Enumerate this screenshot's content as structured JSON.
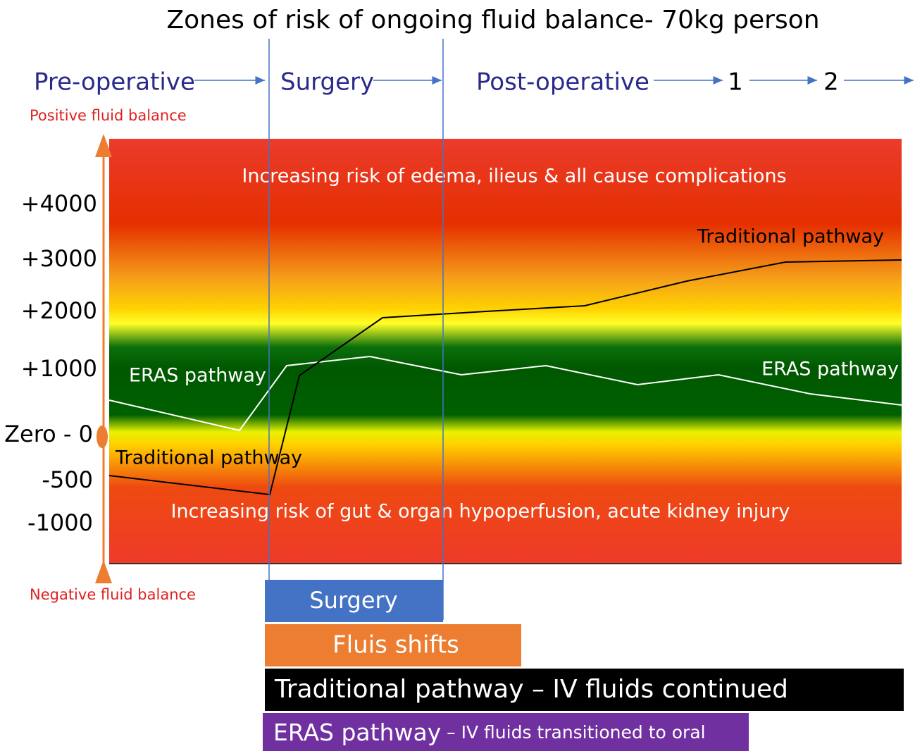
{
  "title": "Zones of risk of ongoing fluid balance- 70kg person",
  "phases": [
    "Pre-operative",
    "Surgery",
    "Post-operative",
    "1",
    "2"
  ],
  "y_axis": {
    "top_label": "Positive fluid balance",
    "bottom_label": "Negative fluid balance",
    "ticks": [
      "+4000",
      "+3000",
      "+2000",
      "+1000",
      "Zero - 0",
      "-500",
      "-1000"
    ]
  },
  "zones": {
    "top": "Increasing risk of edema, ilieus & all cause complications",
    "bottom": "Increasing risk of gut & organ hypoperfusion, acute kidney injury"
  },
  "line_labels": {
    "traditional_right": "Traditional pathway",
    "traditional_left": "Traditional pathway",
    "eras_left": "ERAS pathway",
    "eras_right": "ERAS pathway"
  },
  "bars": {
    "surgery": "Surgery",
    "shifts": "Fluis shifts",
    "traditional": "Traditional pathway – IV fluids continued",
    "eras_main": "ERAS pathway",
    "eras_detail": " – IV fluids transitioned to oral"
  }
}
